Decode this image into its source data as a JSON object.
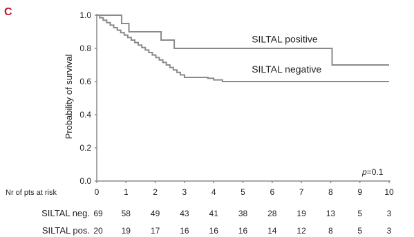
{
  "panel_letter": "C",
  "chart_data": {
    "type": "line",
    "title": "",
    "xlabel": "",
    "ylabel": "Probability of survival",
    "xlim": [
      0,
      10
    ],
    "ylim": [
      0,
      1.0
    ],
    "x_ticks": [
      "0",
      "1",
      "2",
      "3",
      "4",
      "5",
      "6",
      "7",
      "8",
      "9",
      "10"
    ],
    "y_ticks": [
      "0.0",
      "0.2",
      "0.4",
      "0.6",
      "0.8",
      "1.0"
    ],
    "grid": false,
    "series": [
      {
        "name": "SILTAL positive",
        "color": "#8a8a8a",
        "steps": [
          [
            0,
            1.0
          ],
          [
            0.85,
            0.95
          ],
          [
            1.1,
            0.9
          ],
          [
            2.2,
            0.85
          ],
          [
            2.65,
            0.8
          ],
          [
            8.05,
            0.7
          ],
          [
            10,
            0.7
          ]
        ]
      },
      {
        "name": "SILTAL negative",
        "color": "#8a8a8a",
        "steps": [
          [
            0,
            1.0
          ],
          [
            0.1,
            0.985
          ],
          [
            0.22,
            0.97
          ],
          [
            0.34,
            0.955
          ],
          [
            0.46,
            0.94
          ],
          [
            0.58,
            0.925
          ],
          [
            0.7,
            0.91
          ],
          [
            0.82,
            0.895
          ],
          [
            0.94,
            0.88
          ],
          [
            1.06,
            0.865
          ],
          [
            1.18,
            0.85
          ],
          [
            1.3,
            0.835
          ],
          [
            1.42,
            0.82
          ],
          [
            1.54,
            0.805
          ],
          [
            1.66,
            0.79
          ],
          [
            1.78,
            0.775
          ],
          [
            1.9,
            0.76
          ],
          [
            2.02,
            0.745
          ],
          [
            2.14,
            0.73
          ],
          [
            2.26,
            0.715
          ],
          [
            2.38,
            0.7
          ],
          [
            2.5,
            0.685
          ],
          [
            2.62,
            0.67
          ],
          [
            2.74,
            0.655
          ],
          [
            2.86,
            0.64
          ],
          [
            3.0,
            0.625
          ],
          [
            3.8,
            0.62
          ],
          [
            4.0,
            0.61
          ],
          [
            4.3,
            0.6
          ],
          [
            10,
            0.6
          ]
        ]
      }
    ],
    "annotations": [
      {
        "text": "SILTAL positive",
        "x": 5.3,
        "y": 0.835
      },
      {
        "text": "SILTAL negative",
        "x": 5.3,
        "y": 0.655
      }
    ],
    "p_value": {
      "prefix": "p",
      "text": "=0.1"
    }
  },
  "risk_table": {
    "header": "Nr of pts at risk",
    "rows": [
      {
        "label": "SILTAL neg.",
        "values": [
          "69",
          "58",
          "49",
          "43",
          "41",
          "38",
          "28",
          "19",
          "13",
          "5",
          "3"
        ]
      },
      {
        "label": "SILTAL pos.",
        "values": [
          "20",
          "19",
          "17",
          "16",
          "16",
          "16",
          "14",
          "12",
          "8",
          "5",
          "3"
        ]
      }
    ]
  }
}
